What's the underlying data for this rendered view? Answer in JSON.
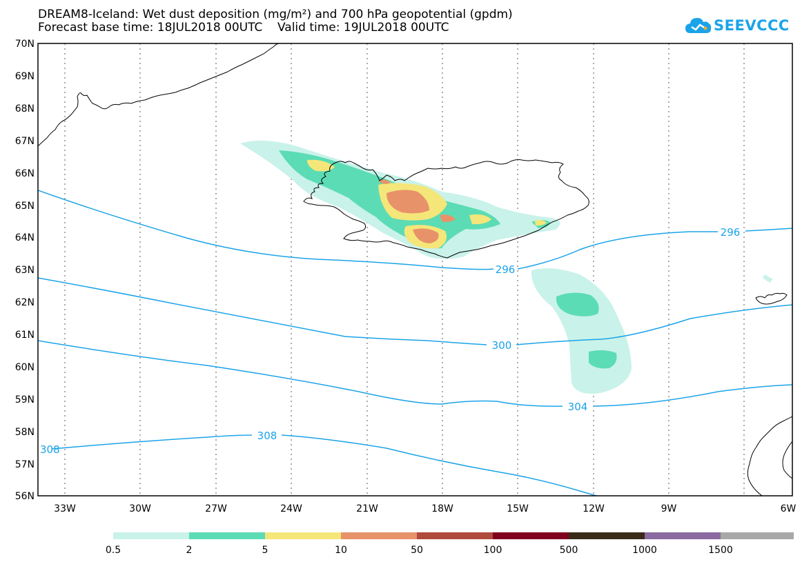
{
  "header": {
    "title_line1": "DREAM8-Iceland: Wet dust deposition (mg/m²) and 700 hPa geopotential (gpdm)",
    "title_line2": "Forecast base time: 18JUL2018 00UTC    Valid time: 19JUL2018 00UTC"
  },
  "logo": {
    "text": "SEEVCCC",
    "color": "#1aa3e8",
    "icon": "cloud-icon"
  },
  "map": {
    "lat_labels": [
      "70N",
      "69N",
      "68N",
      "67N",
      "66N",
      "65N",
      "64N",
      "63N",
      "62N",
      "61N",
      "60N",
      "59N",
      "58N",
      "57N",
      "56N"
    ],
    "lon_labels": [
      "33W",
      "30W",
      "27W",
      "24W",
      "21W",
      "18W",
      "15W",
      "12W",
      "9W",
      "6W"
    ],
    "contour_color": "#1aa3e8",
    "coast_color": "#000000",
    "contour_labels": [
      "296",
      "296",
      "300",
      "304",
      "308",
      "308"
    ]
  },
  "legend": {
    "colors": [
      "#c9f2ea",
      "#5cdcb4",
      "#f5e67a",
      "#e8926a",
      "#b04a3c",
      "#800020",
      "#3a2a1a",
      "#8a6aa0",
      "#a8a8a8"
    ],
    "labels": [
      "0.5",
      "2",
      "5",
      "10",
      "50",
      "100",
      "500",
      "1000",
      "1500"
    ]
  }
}
